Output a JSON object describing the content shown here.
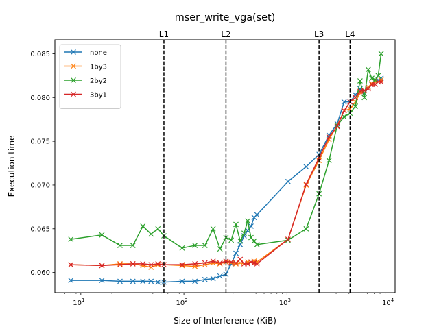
{
  "chart_data": {
    "type": "line",
    "title": "mser_write_vga(set)",
    "xlabel": "Size of Interference (KiB)",
    "ylabel": "Execution time",
    "xscale": "log",
    "xlim": [
      5.6,
      11200
    ],
    "ylim": [
      0.0577,
      0.0866
    ],
    "xticks": [
      10,
      100,
      1000,
      10000
    ],
    "xtick_labels": [
      "10^1",
      "10^2",
      "10^3",
      "10^4"
    ],
    "yticks": [
      0.06,
      0.065,
      0.07,
      0.075,
      0.08,
      0.085
    ],
    "ytick_labels": [
      "0.060",
      "0.065",
      "0.070",
      "0.075",
      "0.080",
      "0.085"
    ],
    "grid": false,
    "legend_position": "top-left",
    "cache_lines": [
      {
        "label": "L1",
        "x": 64
      },
      {
        "label": "L2",
        "x": 256
      },
      {
        "label": "L3",
        "x": 2048
      },
      {
        "label": "L4",
        "x": 4096
      }
    ],
    "series": [
      {
        "name": "none",
        "color": "#1f77b4",
        "points": [
          [
            8,
            0.0591
          ],
          [
            16,
            0.0591
          ],
          [
            24,
            0.059
          ],
          [
            32,
            0.059
          ],
          [
            40,
            0.059
          ],
          [
            48,
            0.059
          ],
          [
            56,
            0.0589
          ],
          [
            64,
            0.0589
          ],
          [
            96,
            0.059
          ],
          [
            128,
            0.059
          ],
          [
            160,
            0.0592
          ],
          [
            192,
            0.0593
          ],
          [
            224,
            0.0596
          ],
          [
            256,
            0.0598
          ],
          [
            288,
            0.061
          ],
          [
            320,
            0.0622
          ],
          [
            352,
            0.0632
          ],
          [
            384,
            0.0642
          ],
          [
            416,
            0.0648
          ],
          [
            448,
            0.0653
          ],
          [
            480,
            0.0663
          ],
          [
            512,
            0.0666
          ],
          [
            1024,
            0.0704
          ],
          [
            1536,
            0.0721
          ],
          [
            2048,
            0.0735
          ],
          [
            2560,
            0.0757
          ],
          [
            3072,
            0.077
          ],
          [
            3584,
            0.0795
          ],
          [
            4096,
            0.0795
          ],
          [
            4608,
            0.0803
          ],
          [
            5120,
            0.081
          ],
          [
            5632,
            0.0805
          ],
          [
            6144,
            0.0812
          ],
          [
            6656,
            0.0815
          ],
          [
            7168,
            0.0818
          ],
          [
            7680,
            0.082
          ],
          [
            8192,
            0.0822
          ]
        ]
      },
      {
        "name": "1by3",
        "color": "#ff7f0e",
        "points": [
          [
            8,
            0.0609
          ],
          [
            16,
            0.0608
          ],
          [
            24,
            0.061
          ],
          [
            32,
            0.061
          ],
          [
            40,
            0.0608
          ],
          [
            48,
            0.0606
          ],
          [
            56,
            0.0609
          ],
          [
            64,
            0.0609
          ],
          [
            96,
            0.0608
          ],
          [
            128,
            0.0607
          ],
          [
            160,
            0.0609
          ],
          [
            192,
            0.0611
          ],
          [
            224,
            0.061
          ],
          [
            256,
            0.0612
          ],
          [
            288,
            0.0611
          ],
          [
            320,
            0.061
          ],
          [
            352,
            0.0611
          ],
          [
            384,
            0.061
          ],
          [
            416,
            0.0612
          ],
          [
            448,
            0.0612
          ],
          [
            480,
            0.0613
          ],
          [
            512,
            0.0612
          ],
          [
            1024,
            0.0638
          ],
          [
            1536,
            0.07
          ],
          [
            2048,
            0.0728
          ],
          [
            2560,
            0.0752
          ],
          [
            3072,
            0.0768
          ],
          [
            3584,
            0.0785
          ],
          [
            4096,
            0.0787
          ],
          [
            4608,
            0.0795
          ],
          [
            5120,
            0.0805
          ],
          [
            5632,
            0.0808
          ],
          [
            6144,
            0.0812
          ],
          [
            6656,
            0.0816
          ],
          [
            7168,
            0.0818
          ],
          [
            7680,
            0.0818
          ],
          [
            8192,
            0.082
          ]
        ]
      },
      {
        "name": "2by2",
        "color": "#2ca02c",
        "points": [
          [
            8,
            0.0638
          ],
          [
            16,
            0.0643
          ],
          [
            24,
            0.0631
          ],
          [
            32,
            0.0631
          ],
          [
            40,
            0.0653
          ],
          [
            48,
            0.0644
          ],
          [
            56,
            0.065
          ],
          [
            64,
            0.0642
          ],
          [
            96,
            0.0628
          ],
          [
            128,
            0.0631
          ],
          [
            160,
            0.0631
          ],
          [
            192,
            0.065
          ],
          [
            224,
            0.0627
          ],
          [
            256,
            0.064
          ],
          [
            288,
            0.0637
          ],
          [
            320,
            0.0655
          ],
          [
            352,
            0.0636
          ],
          [
            384,
            0.0645
          ],
          [
            416,
            0.0659
          ],
          [
            448,
            0.064
          ],
          [
            480,
            0.0636
          ],
          [
            512,
            0.0632
          ],
          [
            1024,
            0.0637
          ],
          [
            1536,
            0.065
          ],
          [
            2048,
            0.069
          ],
          [
            2560,
            0.0728
          ],
          [
            3072,
            0.0768
          ],
          [
            3584,
            0.0778
          ],
          [
            4096,
            0.0782
          ],
          [
            4608,
            0.079
          ],
          [
            5120,
            0.0819
          ],
          [
            5632,
            0.08
          ],
          [
            6144,
            0.0832
          ],
          [
            6656,
            0.0822
          ],
          [
            7168,
            0.082
          ],
          [
            7680,
            0.0825
          ],
          [
            8192,
            0.085
          ]
        ]
      },
      {
        "name": "3by1",
        "color": "#d62728",
        "points": [
          [
            8,
            0.0609
          ],
          [
            16,
            0.0608
          ],
          [
            24,
            0.0609
          ],
          [
            32,
            0.061
          ],
          [
            40,
            0.061
          ],
          [
            48,
            0.0609
          ],
          [
            56,
            0.061
          ],
          [
            64,
            0.0609
          ],
          [
            96,
            0.0609
          ],
          [
            128,
            0.061
          ],
          [
            160,
            0.0611
          ],
          [
            192,
            0.0613
          ],
          [
            224,
            0.0611
          ],
          [
            256,
            0.0613
          ],
          [
            288,
            0.0612
          ],
          [
            320,
            0.0611
          ],
          [
            352,
            0.0615
          ],
          [
            384,
            0.061
          ],
          [
            416,
            0.061
          ],
          [
            448,
            0.0612
          ],
          [
            480,
            0.0611
          ],
          [
            512,
            0.061
          ],
          [
            1024,
            0.0638
          ],
          [
            1536,
            0.0701
          ],
          [
            2048,
            0.0731
          ],
          [
            2560,
            0.0755
          ],
          [
            3072,
            0.0767
          ],
          [
            3584,
            0.0785
          ],
          [
            4096,
            0.0795
          ],
          [
            4608,
            0.08
          ],
          [
            5120,
            0.0807
          ],
          [
            5632,
            0.0808
          ],
          [
            6144,
            0.081
          ],
          [
            6656,
            0.0815
          ],
          [
            7168,
            0.0815
          ],
          [
            7680,
            0.0818
          ],
          [
            8192,
            0.0818
          ]
        ]
      }
    ]
  }
}
